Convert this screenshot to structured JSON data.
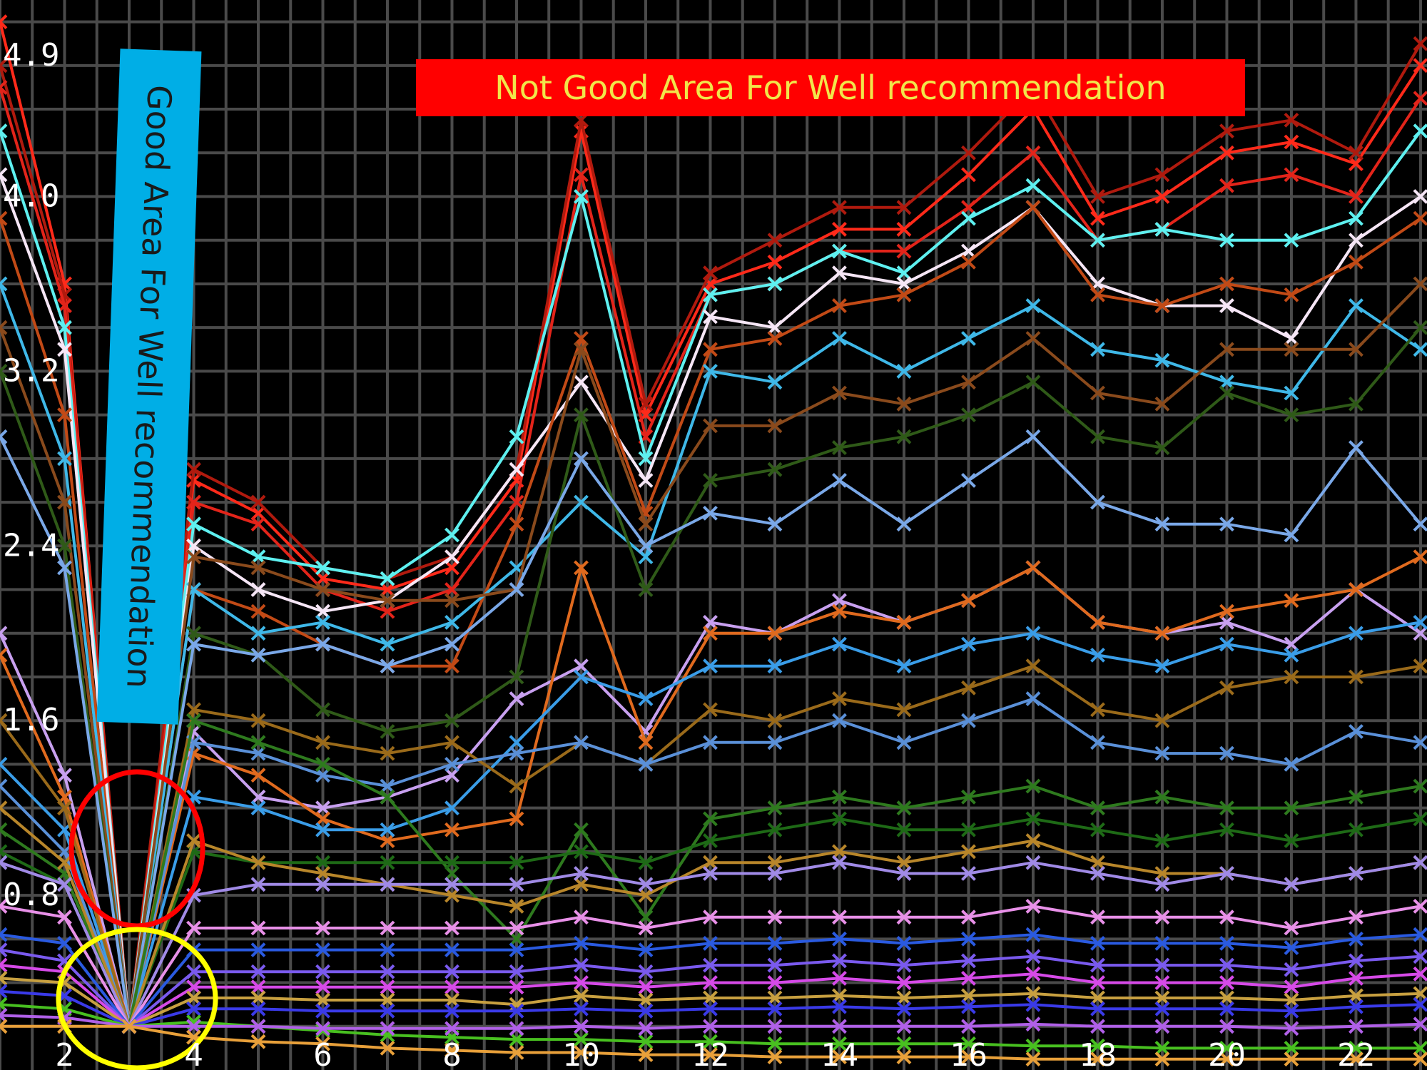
{
  "annotations": {
    "bad_area": "Not Good Area For Well recommendation",
    "good_area": "Good Area For Well recommendation"
  },
  "colors": {
    "background": "#000000",
    "grid": "#4a4a4a",
    "tick_text": "#ffffff",
    "bad_banner_bg": "#ff0000",
    "bad_banner_text": "#f1e64a",
    "good_banner_bg": "#00aee6",
    "good_banner_text": "#1a1a1a",
    "red_circle": "#ff0000",
    "yellow_circle": "#ffff00"
  },
  "chart_data": {
    "type": "line",
    "title": "",
    "xlabel": "",
    "ylabel": "",
    "xlim": [
      1,
      23.1
    ],
    "ylim": [
      0,
      4.9
    ],
    "grid": true,
    "legend": "none",
    "x_ticks": [
      {
        "value": 2,
        "label": "2"
      },
      {
        "value": 4,
        "label": "4"
      },
      {
        "value": 6,
        "label": "6"
      },
      {
        "value": 8,
        "label": "8"
      },
      {
        "value": 10,
        "label": "10"
      },
      {
        "value": 12,
        "label": "12"
      },
      {
        "value": 14,
        "label": "14"
      },
      {
        "value": 16,
        "label": "16"
      },
      {
        "value": 18,
        "label": "18"
      },
      {
        "value": 20,
        "label": "20"
      },
      {
        "value": 22,
        "label": "22"
      }
    ],
    "y_ticks": [
      {
        "value": 0.8,
        "label": "0.8"
      },
      {
        "value": 1.6,
        "label": "1.6"
      },
      {
        "value": 2.4,
        "label": "2.4"
      },
      {
        "value": 3.2,
        "label": "3.2"
      },
      {
        "value": 4.0,
        "label": "4.0"
      },
      {
        "value": 4.9,
        "label": "4.9"
      }
    ],
    "x": [
      1,
      2,
      3,
      4,
      5,
      6,
      7,
      8,
      9,
      10,
      11,
      12,
      13,
      14,
      15,
      16,
      17,
      18,
      19,
      20,
      21,
      22,
      23
    ],
    "series": [
      {
        "color": "#ff2a1a",
        "values": [
          4.8,
          3.6,
          0.2,
          2.7,
          2.55,
          2.25,
          2.2,
          2.3,
          2.7,
          4.3,
          3.0,
          3.6,
          3.7,
          3.85,
          3.85,
          4.1,
          4.4,
          3.9,
          4.0,
          4.2,
          4.25,
          4.15,
          4.6
        ]
      },
      {
        "color": "#b01a0e",
        "values": [
          4.6,
          3.55,
          0.2,
          2.75,
          2.6,
          2.3,
          2.25,
          2.35,
          2.75,
          4.35,
          3.05,
          3.65,
          3.8,
          3.95,
          3.95,
          4.2,
          4.5,
          4.0,
          4.1,
          4.3,
          4.35,
          4.2,
          4.7
        ]
      },
      {
        "color": "#e3241a",
        "values": [
          4.5,
          3.5,
          0.2,
          2.6,
          2.5,
          2.2,
          2.1,
          2.2,
          2.6,
          4.1,
          2.9,
          3.55,
          3.6,
          3.75,
          3.75,
          3.95,
          4.2,
          3.8,
          3.85,
          4.05,
          4.1,
          4.0,
          4.45
        ]
      },
      {
        "color": "#5ef0f0",
        "values": [
          4.3,
          3.4,
          0.2,
          2.5,
          2.35,
          2.3,
          2.25,
          2.45,
          2.9,
          4.0,
          2.8,
          3.55,
          3.6,
          3.75,
          3.65,
          3.9,
          4.05,
          3.8,
          3.85,
          3.8,
          3.8,
          3.9,
          4.3
        ]
      },
      {
        "color": "#f6e6f6",
        "values": [
          4.1,
          3.3,
          0.2,
          2.4,
          2.2,
          2.1,
          2.15,
          2.35,
          2.75,
          3.15,
          2.7,
          3.45,
          3.4,
          3.65,
          3.6,
          3.75,
          3.95,
          3.6,
          3.5,
          3.5,
          3.35,
          3.8,
          4.0
        ]
      },
      {
        "color": "#c24a16",
        "values": [
          3.9,
          3.0,
          0.2,
          2.2,
          2.1,
          1.95,
          1.85,
          1.85,
          2.5,
          3.35,
          2.55,
          3.3,
          3.35,
          3.5,
          3.55,
          3.7,
          3.95,
          3.55,
          3.5,
          3.6,
          3.55,
          3.7,
          3.9
        ]
      },
      {
        "color": "#3fb8e8",
        "values": [
          3.6,
          2.8,
          0.2,
          2.2,
          2.0,
          2.05,
          1.95,
          2.05,
          2.3,
          2.6,
          2.35,
          3.2,
          3.15,
          3.35,
          3.2,
          3.35,
          3.5,
          3.3,
          3.25,
          3.15,
          3.1,
          3.5,
          3.3
        ]
      },
      {
        "color": "#8a4a1c",
        "values": [
          3.4,
          2.6,
          0.2,
          2.35,
          2.3,
          2.2,
          2.15,
          2.15,
          2.2,
          3.3,
          2.5,
          2.95,
          2.95,
          3.1,
          3.05,
          3.15,
          3.35,
          3.1,
          3.05,
          3.3,
          3.3,
          3.3,
          3.6
        ]
      },
      {
        "color": "#2f5a18",
        "values": [
          3.2,
          2.4,
          0.2,
          2.0,
          1.9,
          1.65,
          1.55,
          1.6,
          1.8,
          3.0,
          2.2,
          2.7,
          2.75,
          2.85,
          2.9,
          3.0,
          3.15,
          2.9,
          2.85,
          3.1,
          3.0,
          3.05,
          3.4
        ]
      },
      {
        "color": "#7aa8e8",
        "values": [
          2.9,
          2.3,
          0.2,
          1.95,
          1.9,
          1.95,
          1.85,
          1.95,
          2.2,
          2.8,
          2.4,
          2.55,
          2.5,
          2.7,
          2.5,
          2.7,
          2.9,
          2.6,
          2.5,
          2.5,
          2.45,
          2.85,
          2.5
        ]
      },
      {
        "color": "#c8a0f0",
        "values": [
          2.0,
          1.35,
          0.2,
          1.55,
          1.25,
          1.2,
          1.25,
          1.35,
          1.7,
          1.85,
          1.55,
          2.05,
          2.0,
          2.15,
          2.05,
          2.15,
          2.3,
          2.05,
          2.0,
          2.05,
          1.95,
          2.2,
          2.0
        ]
      },
      {
        "color": "#e06a1e",
        "values": [
          1.9,
          1.25,
          0.2,
          1.45,
          1.35,
          1.15,
          1.05,
          1.1,
          1.15,
          2.3,
          1.5,
          2.0,
          2.0,
          2.1,
          2.05,
          2.15,
          2.3,
          2.05,
          2.0,
          2.1,
          2.15,
          2.2,
          2.35
        ]
      },
      {
        "color": "#3a9de8",
        "values": [
          1.4,
          1.1,
          0.2,
          1.25,
          1.2,
          1.1,
          1.1,
          1.2,
          1.5,
          1.8,
          1.7,
          1.85,
          1.85,
          1.95,
          1.85,
          1.95,
          2.0,
          1.9,
          1.85,
          1.95,
          1.9,
          2.0,
          2.05
        ]
      },
      {
        "color": "#9a6a1a",
        "values": [
          1.6,
          1.2,
          0.2,
          1.65,
          1.6,
          1.5,
          1.45,
          1.5,
          1.3,
          1.5,
          1.4,
          1.65,
          1.6,
          1.7,
          1.65,
          1.75,
          1.85,
          1.65,
          1.6,
          1.75,
          1.8,
          1.8,
          1.85
        ]
      },
      {
        "color": "#5a90d8",
        "values": [
          1.3,
          1.0,
          0.2,
          1.5,
          1.45,
          1.35,
          1.3,
          1.4,
          1.45,
          1.5,
          1.4,
          1.5,
          1.5,
          1.6,
          1.5,
          1.6,
          1.7,
          1.5,
          1.45,
          1.45,
          1.4,
          1.55,
          1.5
        ]
      },
      {
        "color": "#2e7a1e",
        "values": [
          1.1,
          0.9,
          0.2,
          1.6,
          1.5,
          1.4,
          1.25,
          0.9,
          0.6,
          1.1,
          0.7,
          1.15,
          1.2,
          1.25,
          1.2,
          1.25,
          1.3,
          1.2,
          1.25,
          1.2,
          1.2,
          1.25,
          1.3
        ]
      },
      {
        "color": "#1e6a16",
        "values": [
          1.0,
          0.85,
          0.2,
          1.0,
          0.95,
          0.95,
          0.95,
          0.95,
          0.95,
          1.0,
          0.95,
          1.05,
          1.1,
          1.15,
          1.1,
          1.1,
          1.15,
          1.1,
          1.05,
          1.1,
          1.05,
          1.1,
          1.15
        ]
      },
      {
        "color": "#b8862a",
        "values": [
          1.2,
          0.95,
          0.2,
          1.05,
          0.95,
          0.9,
          0.85,
          0.8,
          0.75,
          0.85,
          0.8,
          0.95,
          0.95,
          1.0,
          0.95,
          1.0,
          1.05,
          0.95,
          0.9,
          0.9,
          0.85,
          0.9,
          0.95
        ]
      },
      {
        "color": "#a08ae6",
        "values": [
          0.95,
          0.85,
          0.2,
          0.8,
          0.85,
          0.85,
          0.85,
          0.85,
          0.85,
          0.9,
          0.85,
          0.9,
          0.9,
          0.95,
          0.9,
          0.9,
          0.95,
          0.9,
          0.85,
          0.9,
          0.85,
          0.9,
          0.95
        ]
      },
      {
        "color": "#e890e8",
        "values": [
          0.75,
          0.7,
          0.2,
          0.65,
          0.65,
          0.65,
          0.65,
          0.65,
          0.65,
          0.7,
          0.65,
          0.7,
          0.7,
          0.7,
          0.7,
          0.7,
          0.75,
          0.7,
          0.7,
          0.7,
          0.65,
          0.7,
          0.75
        ]
      },
      {
        "color": "#2a5ae0",
        "values": [
          0.62,
          0.58,
          0.2,
          0.55,
          0.55,
          0.55,
          0.55,
          0.55,
          0.55,
          0.58,
          0.55,
          0.58,
          0.58,
          0.6,
          0.58,
          0.6,
          0.62,
          0.58,
          0.58,
          0.58,
          0.56,
          0.6,
          0.62
        ]
      },
      {
        "color": "#7a5aee",
        "values": [
          0.55,
          0.5,
          0.2,
          0.45,
          0.45,
          0.45,
          0.45,
          0.45,
          0.45,
          0.48,
          0.45,
          0.48,
          0.48,
          0.5,
          0.48,
          0.5,
          0.52,
          0.48,
          0.48,
          0.48,
          0.46,
          0.5,
          0.52
        ]
      },
      {
        "color": "#d64ae8",
        "values": [
          0.48,
          0.45,
          0.2,
          0.38,
          0.38,
          0.38,
          0.38,
          0.38,
          0.38,
          0.4,
          0.38,
          0.4,
          0.4,
          0.42,
          0.4,
          0.42,
          0.44,
          0.4,
          0.4,
          0.4,
          0.38,
          0.42,
          0.44
        ]
      },
      {
        "color": "#c8a040",
        "values": [
          0.42,
          0.4,
          0.2,
          0.33,
          0.33,
          0.32,
          0.32,
          0.32,
          0.3,
          0.34,
          0.32,
          0.33,
          0.33,
          0.34,
          0.33,
          0.34,
          0.35,
          0.33,
          0.33,
          0.33,
          0.32,
          0.34,
          0.35
        ]
      },
      {
        "color": "#3a3ae8",
        "values": [
          0.36,
          0.34,
          0.2,
          0.28,
          0.28,
          0.27,
          0.27,
          0.27,
          0.27,
          0.28,
          0.27,
          0.28,
          0.28,
          0.29,
          0.28,
          0.29,
          0.3,
          0.28,
          0.28,
          0.28,
          0.27,
          0.29,
          0.3
        ]
      },
      {
        "color": "#48c020",
        "values": [
          0.3,
          0.28,
          0.2,
          0.22,
          0.2,
          0.18,
          0.16,
          0.15,
          0.14,
          0.14,
          0.13,
          0.13,
          0.12,
          0.12,
          0.12,
          0.12,
          0.11,
          0.11,
          0.1,
          0.1,
          0.1,
          0.1,
          0.1
        ]
      },
      {
        "color": "#b060e8",
        "values": [
          0.25,
          0.24,
          0.2,
          0.2,
          0.2,
          0.19,
          0.19,
          0.19,
          0.19,
          0.2,
          0.19,
          0.2,
          0.2,
          0.2,
          0.2,
          0.2,
          0.21,
          0.2,
          0.2,
          0.2,
          0.19,
          0.2,
          0.21
        ]
      },
      {
        "color": "#e8a03a",
        "values": [
          0.2,
          0.2,
          0.2,
          0.15,
          0.13,
          0.12,
          0.1,
          0.09,
          0.08,
          0.08,
          0.07,
          0.07,
          0.06,
          0.06,
          0.06,
          0.06,
          0.05,
          0.05,
          0.05,
          0.05,
          0.05,
          0.05,
          0.05
        ]
      }
    ]
  }
}
